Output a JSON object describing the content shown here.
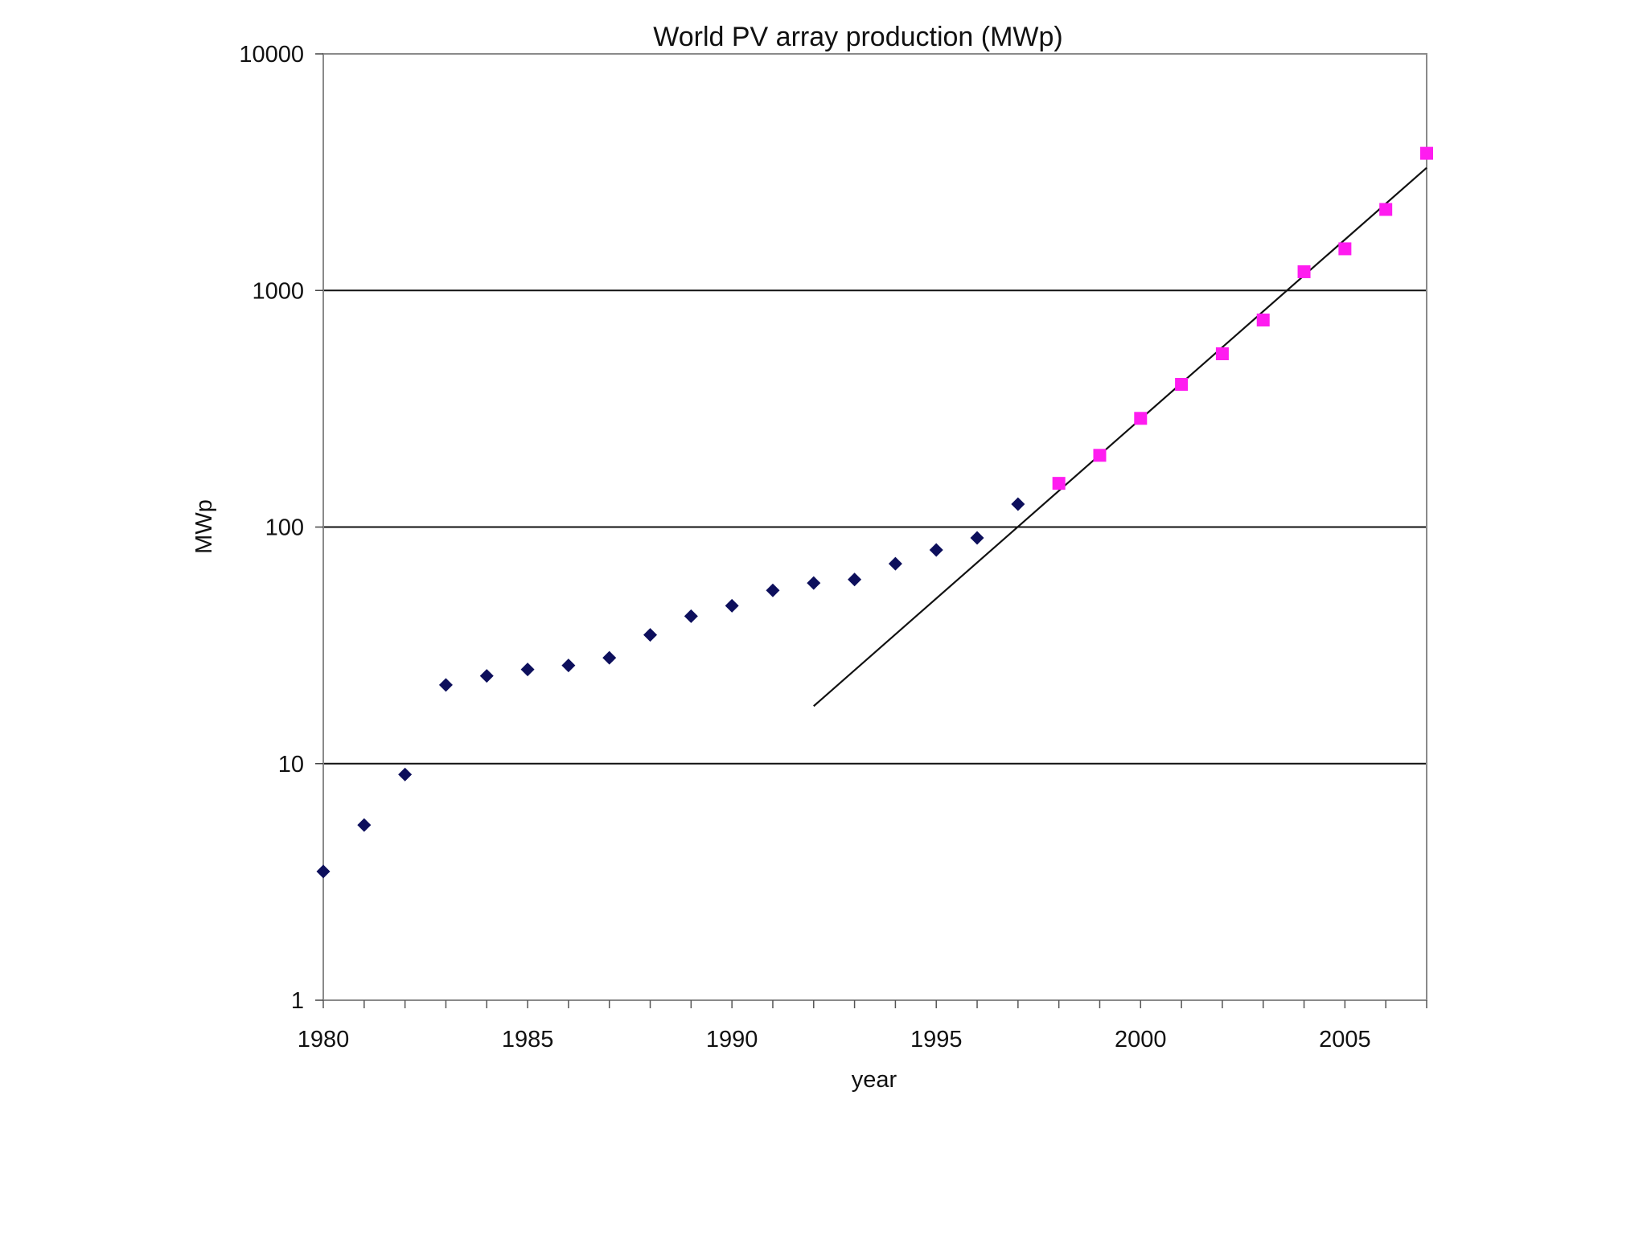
{
  "chart_data": {
    "type": "scatter",
    "title": "World PV array production (MWp)",
    "xlabel": "year",
    "ylabel": "MWp",
    "x_range": [
      1980,
      2007
    ],
    "y_range": [
      1,
      10000
    ],
    "y_scale": "log",
    "x_ticks": [
      "1980",
      "1985",
      "1990",
      "1995",
      "2000",
      "2005"
    ],
    "y_ticks": [
      "10000",
      "1000",
      "100",
      "10",
      "1"
    ],
    "grid": "horizontal major lines",
    "legend": "none",
    "series": [
      {
        "marker": "diamond",
        "color": "#0d0f5c",
        "points": [
          [
            1980,
            3.5
          ],
          [
            1981,
            5.5
          ],
          [
            1982,
            9.0
          ],
          [
            1983,
            21.5
          ],
          [
            1984,
            23.5
          ],
          [
            1985,
            25.0
          ],
          [
            1986,
            26.0
          ],
          [
            1987,
            28.0
          ],
          [
            1988,
            35.0
          ],
          [
            1989,
            42.0
          ],
          [
            1990,
            46.5
          ],
          [
            1991,
            54.0
          ],
          [
            1992,
            58.0
          ],
          [
            1993,
            60.0
          ],
          [
            1994,
            70.0
          ],
          [
            1995,
            80.0
          ],
          [
            1996,
            90.0
          ],
          [
            1997,
            125.0
          ]
        ]
      },
      {
        "marker": "square",
        "color": "#ff1cf0",
        "points": [
          [
            1998,
            153
          ],
          [
            1999,
            201
          ],
          [
            2000,
            288
          ],
          [
            2001,
            401
          ],
          [
            2002,
            540
          ],
          [
            2003,
            750
          ],
          [
            2004,
            1200
          ],
          [
            2005,
            1500
          ],
          [
            2006,
            2200
          ],
          [
            2007,
            3800
          ]
        ]
      }
    ],
    "trendline": {
      "color": "#111111",
      "from": [
        1992,
        17.5
      ],
      "to": [
        2007,
        3300
      ]
    }
  }
}
